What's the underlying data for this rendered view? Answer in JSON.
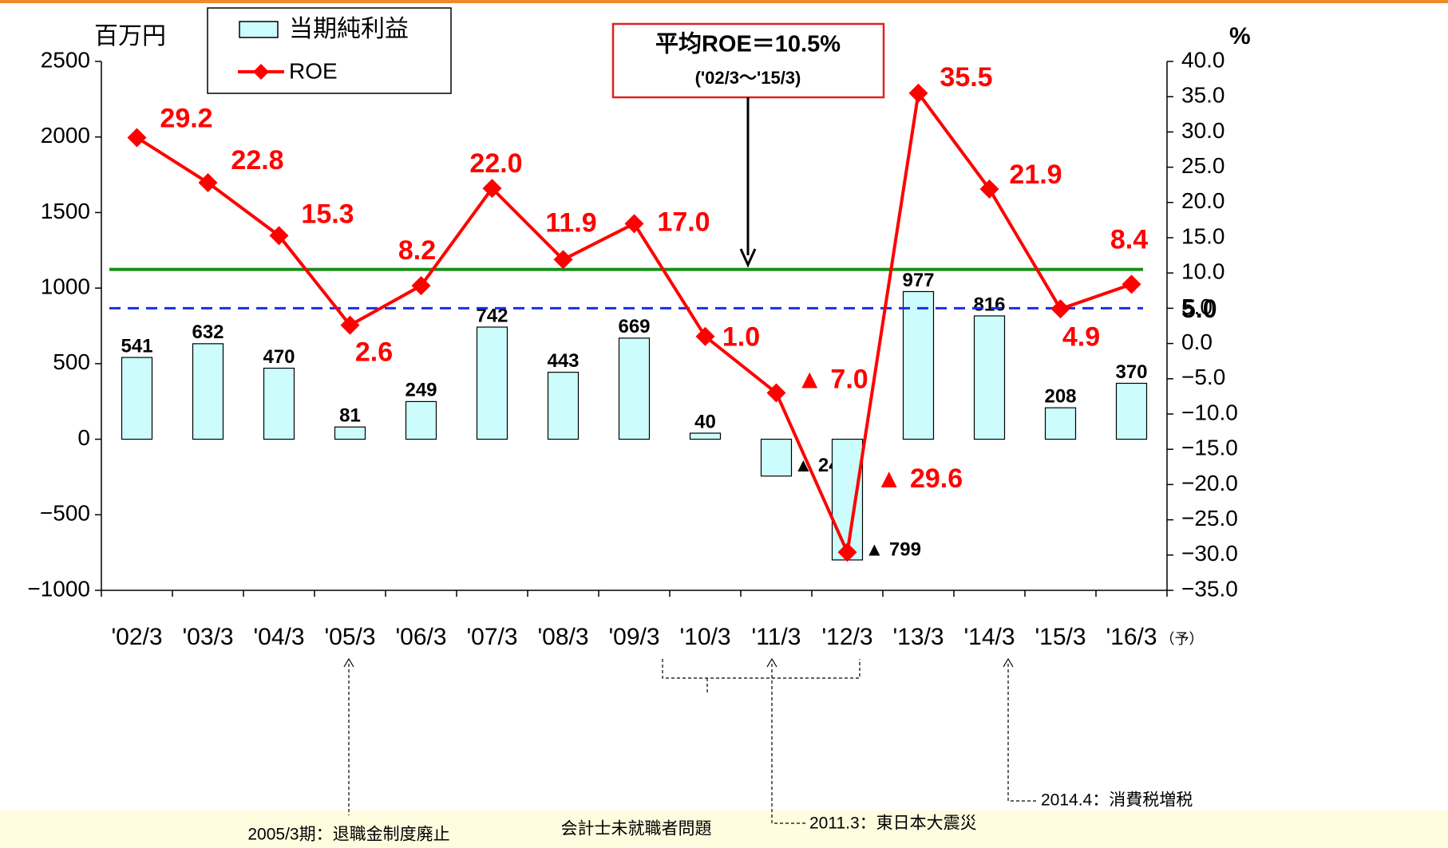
{
  "chart_data": {
    "type": "bar",
    "y_label": "百万円",
    "y2_label": "%",
    "categories": [
      "'02/3",
      "'03/3",
      "'04/3",
      "'05/3",
      "'06/3",
      "'07/3",
      "'08/3",
      "'09/3",
      "'10/3",
      "'11/3",
      "'12/3",
      "'13/3",
      "'14/3",
      "'15/3",
      "'16/3"
    ],
    "forecast_note": "（予）",
    "series": [
      {
        "name": "当期純利益",
        "type": "bar",
        "color": "#ccfcfc",
        "values": [
          541,
          632,
          470,
          81,
          249,
          742,
          443,
          669,
          40,
          -244,
          -799,
          977,
          816,
          208,
          370
        ],
        "value_labels": [
          "541",
          "632",
          "470",
          "81",
          "249",
          "742",
          "443",
          "669",
          "40",
          "▲ 244",
          "▲ 799",
          "977",
          "816",
          "208",
          "370"
        ]
      },
      {
        "name": "ROE",
        "type": "line",
        "axis": "y2",
        "color": "#ff0000",
        "values": [
          29.2,
          22.8,
          15.3,
          2.6,
          8.2,
          22.0,
          11.9,
          17.0,
          1.0,
          -7.0,
          -29.6,
          35.5,
          21.9,
          4.9,
          8.4
        ],
        "value_labels": [
          "29.2",
          "22.8",
          "15.3",
          "2.6",
          "8.2",
          "22.0",
          "11.9",
          "17.0",
          "1.0",
          "▲ 7.0",
          "▲ 29.6",
          "35.5",
          "21.9",
          "4.9",
          "8.4"
        ]
      }
    ],
    "ylim": [
      -1000,
      2500
    ],
    "yticks": [
      {
        "value": -1000,
        "label": "−1000"
      },
      {
        "value": -500,
        "label": "−500"
      },
      0,
      500,
      1000,
      1500,
      2000,
      2500
    ],
    "y2lim": [
      -35,
      40
    ],
    "y2ticks": [
      {
        "value": -35,
        "label": "−35.0"
      },
      {
        "value": -30,
        "label": "−30.0"
      },
      {
        "value": -25,
        "label": "−25.0"
      },
      {
        "value": -20,
        "label": "−20.0"
      },
      {
        "value": -15,
        "label": "−15.0"
      },
      {
        "value": -10,
        "label": "−10.0"
      },
      {
        "value": -5,
        "label": "−5.0"
      },
      {
        "value": 0,
        "label": "0.0"
      },
      {
        "value": 5,
        "label": "5.0"
      },
      {
        "value": 10,
        "label": "10.0"
      },
      {
        "value": 15,
        "label": "15.0"
      },
      {
        "value": 20,
        "label": "20.0"
      },
      {
        "value": 25,
        "label": "25.0"
      },
      {
        "value": 30,
        "label": "30.0"
      },
      {
        "value": 35,
        "label": "35.0"
      },
      {
        "value": 40,
        "label": "40.0"
      }
    ],
    "reference_lines": [
      {
        "value": 10.5,
        "axis": "y2",
        "color": "#189018",
        "style": "solid"
      },
      {
        "value": 5.0,
        "axis": "y2",
        "color": "#1a2ee8",
        "style": "dashed",
        "label": "5.0"
      }
    ],
    "annotation_box": {
      "title": "平均ROE＝10.5%",
      "subtitle": "('02/3～'15/3)"
    },
    "notes": [
      "2005/3期：退職金制度廃止",
      "会計士未就職者問題",
      "2011.3：東日本大震災",
      "2014.4：消費税増税"
    ]
  }
}
